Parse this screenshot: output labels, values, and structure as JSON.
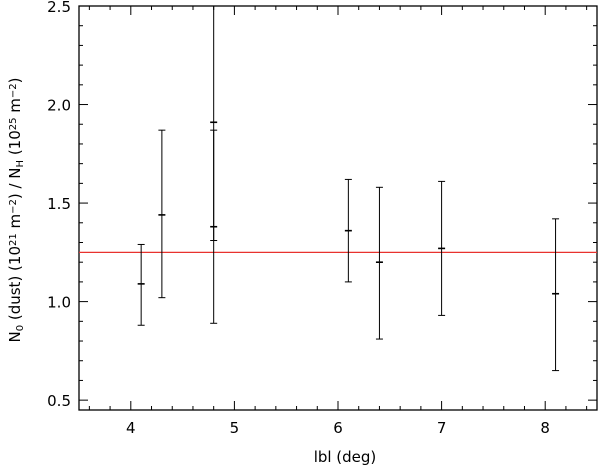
{
  "chart_data": {
    "type": "scatter",
    "xlabel": "lbl (deg)",
    "ylabel": {
      "parts": [
        {
          "t": "N"
        },
        {
          "t": "0",
          "sub": true
        },
        {
          "t": " (dust) (10"
        },
        {
          "t": "21",
          "sup": true
        },
        {
          "t": " m"
        },
        {
          "t": "−2",
          "sup": true
        },
        {
          "t": ") / N"
        },
        {
          "t": "H",
          "sub": true
        },
        {
          "t": " (10"
        },
        {
          "t": "25",
          "sup": true
        },
        {
          "t": " m"
        },
        {
          "t": "−2",
          "sup": true
        },
        {
          "t": ")"
        }
      ]
    },
    "xlim": [
      3.5,
      8.5
    ],
    "ylim": [
      0.45,
      2.5
    ],
    "xticks": [
      4,
      5,
      6,
      7,
      8
    ],
    "xtick_labels": [
      "4",
      "5",
      "6",
      "7",
      "8"
    ],
    "yticks": [
      0.5,
      1.0,
      1.5,
      2.0,
      2.5
    ],
    "ytick_labels": [
      "0.5",
      "1.0",
      "1.5",
      "2.0",
      "2.5"
    ],
    "points": [
      {
        "x": 4.1,
        "y": 1.09,
        "yerr_low": 0.88,
        "yerr_high": 1.29
      },
      {
        "x": 4.3,
        "y": 1.44,
        "yerr_low": 1.02,
        "yerr_high": 1.87
      },
      {
        "x": 4.8,
        "y": 1.91,
        "yerr_low": 1.31,
        "yerr_high": 2.5
      },
      {
        "x": 4.8,
        "y": 1.38,
        "yerr_low": 0.89,
        "yerr_high": 1.87
      },
      {
        "x": 6.1,
        "y": 1.36,
        "yerr_low": 1.1,
        "yerr_high": 1.62
      },
      {
        "x": 6.4,
        "y": 1.2,
        "yerr_low": 0.81,
        "yerr_high": 1.58
      },
      {
        "x": 7.0,
        "y": 1.27,
        "yerr_low": 0.93,
        "yerr_high": 1.61
      },
      {
        "x": 8.1,
        "y": 1.04,
        "yerr_low": 0.65,
        "yerr_high": 1.42
      }
    ],
    "reference_line": {
      "y": 1.25,
      "color": "#e8322e"
    },
    "grid": false
  }
}
